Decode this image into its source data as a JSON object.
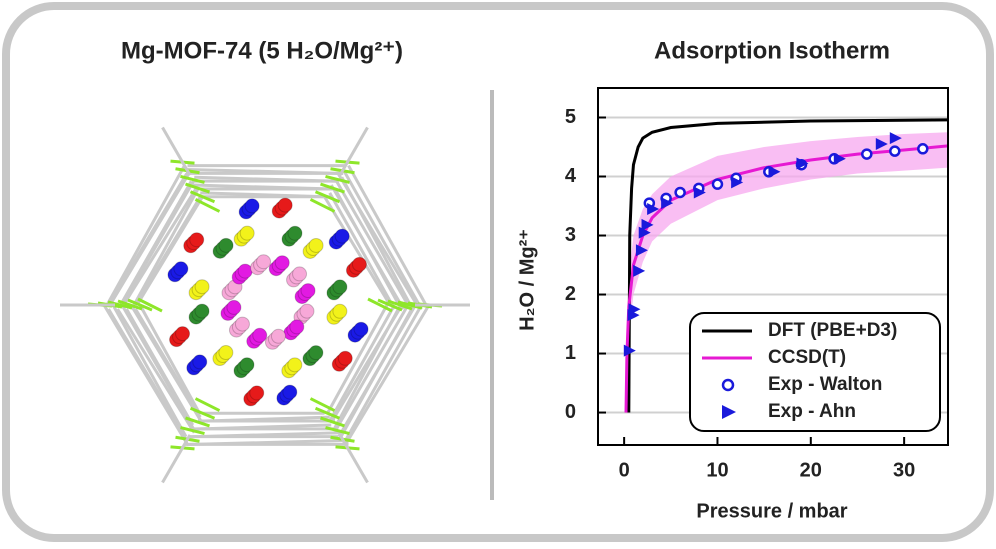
{
  "left_panel": {
    "title": "Mg-MOF-74 (5 H₂O/Mg²⁺)"
  },
  "chart_data": {
    "type": "line",
    "title": "Adsorption Isotherm",
    "x_label": "Pressure / mbar",
    "y_label": "H₂O / Mg²⁺",
    "xlim": [
      -2.8,
      34.7
    ],
    "ylim": [
      -0.55,
      5.5
    ],
    "xticks": [
      0,
      10,
      20,
      30
    ],
    "yticks": [
      0,
      1,
      2,
      3,
      4,
      5
    ],
    "grid": true,
    "legend": "lower-right",
    "series": [
      {
        "name": "DFT (PBE+D3)",
        "color": "#000000",
        "style": "line",
        "x": [
          0.5,
          0.6,
          0.8,
          1,
          1.5,
          2,
          3,
          5,
          10,
          20,
          34.7
        ],
        "values": [
          0,
          3.0,
          3.8,
          4.2,
          4.5,
          4.65,
          4.75,
          4.83,
          4.9,
          4.94,
          4.96
        ]
      },
      {
        "name": "CCSD(T)",
        "color": "#e619d2",
        "style": "line",
        "band_color": "#f7a8ef",
        "x": [
          0.2,
          0.3,
          0.5,
          1,
          2,
          3,
          5,
          10,
          15,
          20,
          25,
          30,
          34.7
        ],
        "values": [
          0,
          1.0,
          1.8,
          2.5,
          3.0,
          3.3,
          3.6,
          3.95,
          4.15,
          4.28,
          4.38,
          4.45,
          4.52
        ],
        "band_lower": [
          0,
          0.6,
          1.3,
          2.0,
          2.55,
          2.9,
          3.2,
          3.6,
          3.8,
          3.95,
          4.05,
          4.1,
          4.15
        ],
        "band_upper": [
          0,
          1.4,
          2.3,
          3.0,
          3.45,
          3.7,
          4.0,
          4.35,
          4.5,
          4.6,
          4.67,
          4.72,
          4.75
        ]
      },
      {
        "name": "Exp - Walton",
        "color": "#1a1adb",
        "style": "circle",
        "x": [
          2.7,
          4.5,
          6,
          8,
          10,
          12,
          15.5,
          19,
          22.5,
          26,
          29,
          32
        ],
        "values": [
          3.55,
          3.63,
          3.73,
          3.8,
          3.87,
          3.97,
          4.08,
          4.2,
          4.3,
          4.38,
          4.43,
          4.47
        ]
      },
      {
        "name": "Exp - Ahn",
        "color": "#1a1adb",
        "style": "triangle",
        "x": [
          0.5,
          0.9,
          1,
          1.5,
          1.8,
          2.1,
          2.4,
          3,
          4.5,
          8,
          12,
          16,
          19,
          23,
          27.5,
          29
        ],
        "values": [
          1.05,
          1.65,
          1.75,
          2.4,
          2.75,
          3.05,
          3.18,
          3.45,
          3.55,
          3.73,
          3.9,
          4.08,
          4.22,
          4.3,
          4.55,
          4.65
        ]
      }
    ]
  }
}
